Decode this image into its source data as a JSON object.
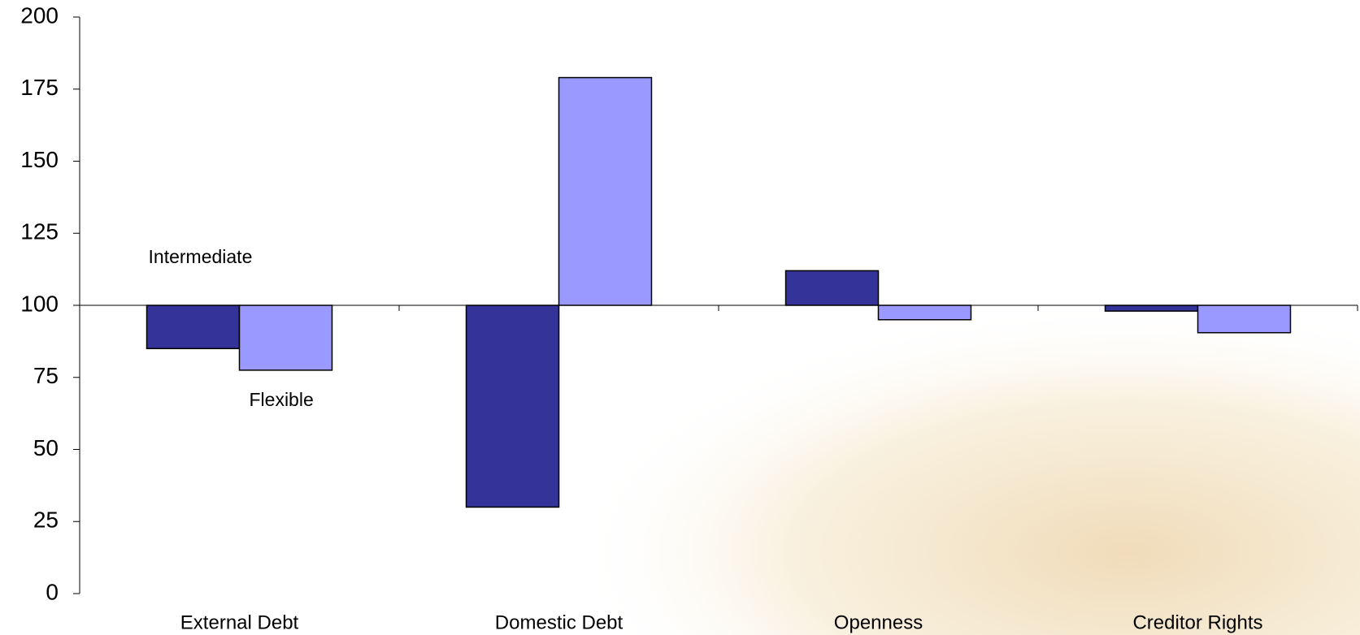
{
  "chart_data": {
    "type": "bar",
    "categories": [
      "External Debt",
      "Domestic Debt",
      "Openness",
      "Creditor Rights"
    ],
    "baseline": 100,
    "series": [
      {
        "name": "Intermediate",
        "color": "#333399",
        "values": [
          85,
          30,
          112,
          98
        ]
      },
      {
        "name": "Flexible",
        "color": "#9999ff",
        "values": [
          77.5,
          179,
          95,
          90.5
        ]
      }
    ],
    "ylim": [
      0,
      200
    ],
    "yticks": [
      0,
      25,
      50,
      75,
      100,
      125,
      150,
      175,
      200
    ],
    "grid": false
  }
}
